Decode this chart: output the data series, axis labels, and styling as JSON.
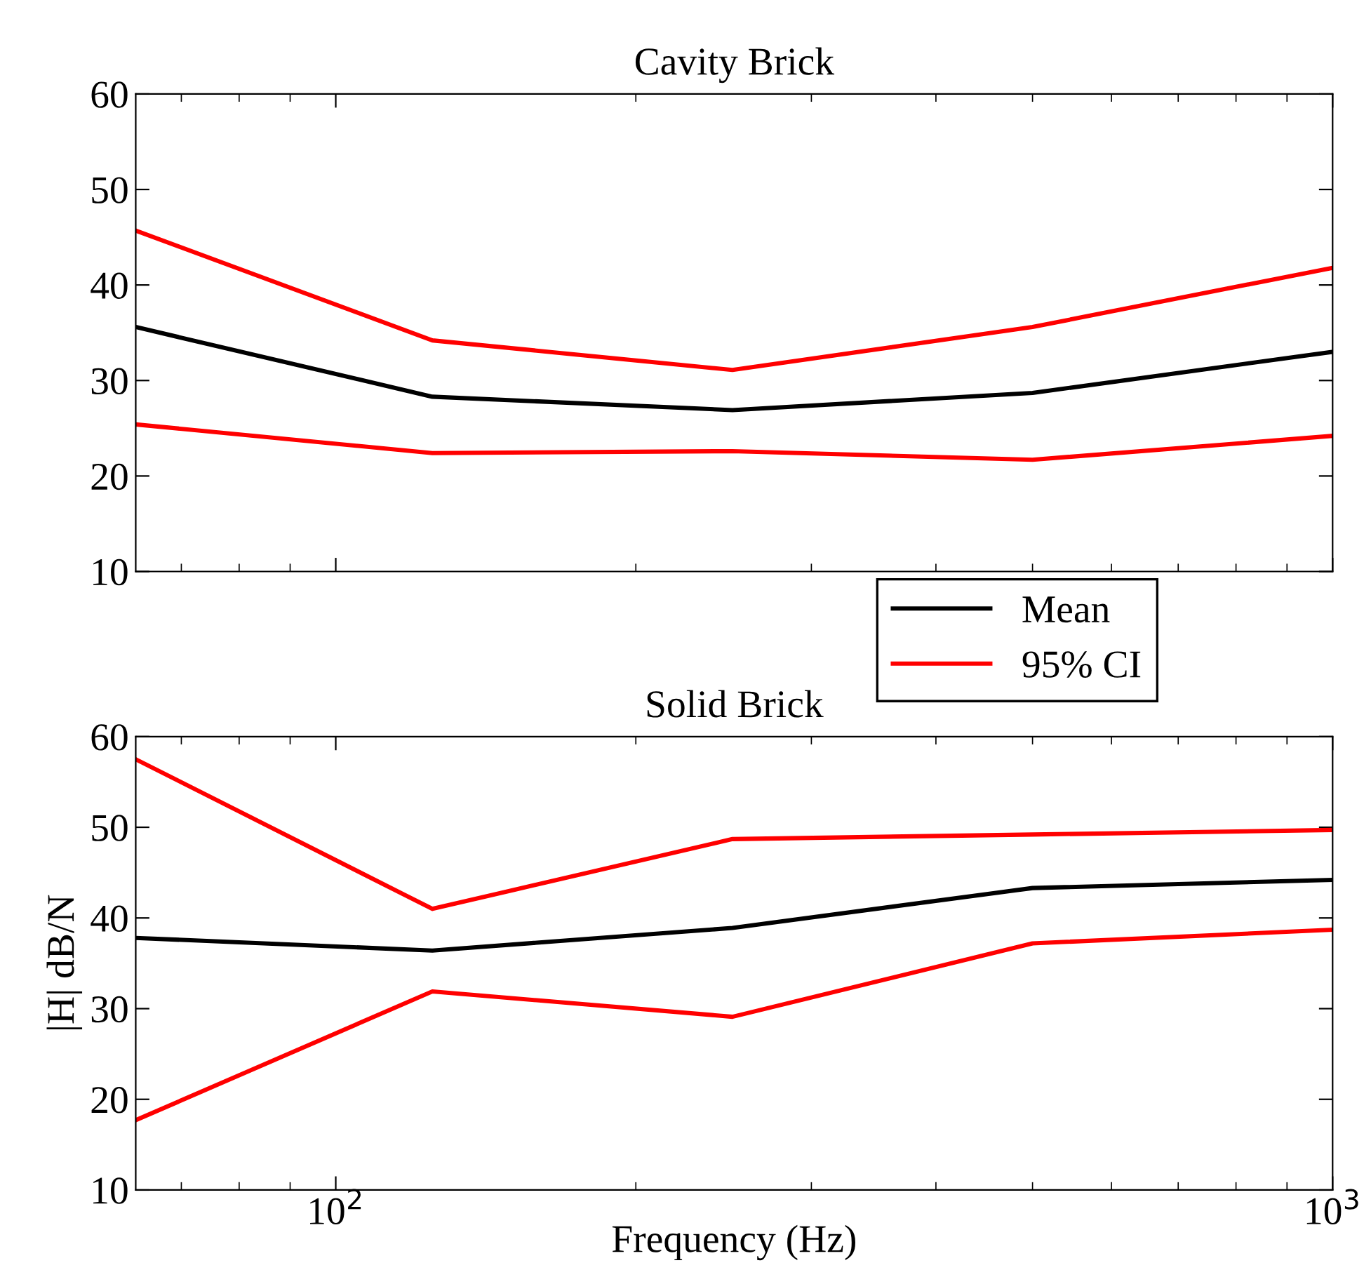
{
  "chart_data": [
    {
      "type": "line",
      "title": "Cavity Brick",
      "x": [
        63,
        125,
        250,
        500,
        1000
      ],
      "xlim": [
        63,
        1000
      ],
      "log": "x",
      "ylim": [
        10,
        60
      ],
      "yticks": [
        10,
        20,
        30,
        40,
        50,
        60
      ],
      "tick_labels": "y",
      "grid": false,
      "legend": "bottom right",
      "line_style": "solid",
      "marker": "none",
      "series": [
        {
          "name": "Mean",
          "color": "#000000",
          "values": [
            35.6,
            28.3,
            26.9,
            28.7,
            33.0
          ]
        },
        {
          "name": "95% CI",
          "color": "#ff0000",
          "values": [
            45.7,
            34.2,
            31.1,
            35.6,
            41.8
          ]
        },
        {
          "color": "#ff0000",
          "values": [
            25.4,
            22.4,
            22.6,
            21.7,
            24.2
          ]
        }
      ]
    },
    {
      "type": "line",
      "title": "Solid Brick",
      "xlabel": "Frequency (Hz)",
      "ylabel": "|H| dB/N",
      "x": [
        63,
        125,
        250,
        500,
        1000
      ],
      "xlim": [
        63,
        1000
      ],
      "xticks": [
        {
          "value": 100,
          "label": "10$^{2}$"
        },
        {
          "value": 1000,
          "label": "10$^{3}$"
        }
      ],
      "log": "x",
      "ylim": [
        10,
        60
      ],
      "yticks": [
        10,
        20,
        30,
        40,
        50,
        60
      ],
      "grid": false,
      "line_style": "solid",
      "marker": "none",
      "series": [
        {
          "color": "#000000",
          "values": [
            37.8,
            36.4,
            38.9,
            43.3,
            44.2
          ]
        },
        {
          "color": "#ff0000",
          "values": [
            57.5,
            41.0,
            48.7,
            49.2,
            49.7
          ]
        },
        {
          "color": "#ff0000",
          "values": [
            17.7,
            31.9,
            29.1,
            37.2,
            38.7
          ]
        }
      ]
    }
  ]
}
